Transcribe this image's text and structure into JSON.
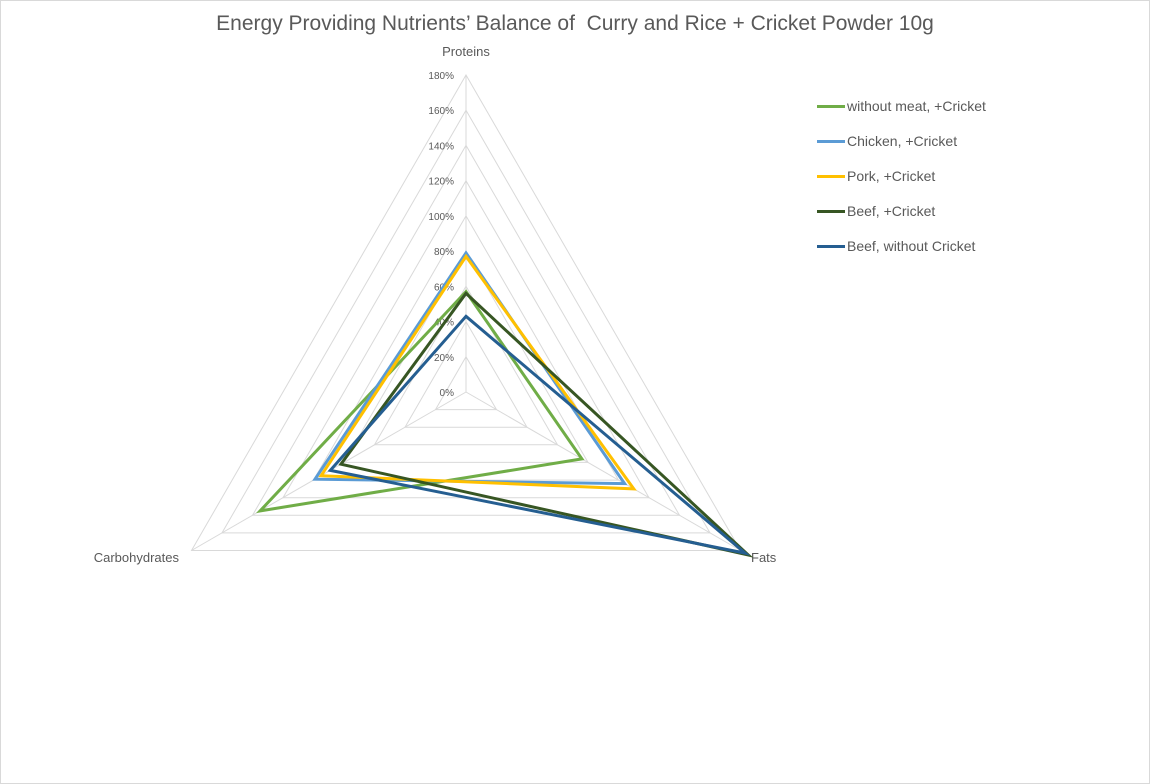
{
  "chart_data": {
    "type": "radar",
    "title": "Energy Providing Nutrients’ Balance of  Curry and Rice + Cricket Powder 10g",
    "axes": [
      "Proteins",
      "Fats",
      "Carbohydrates"
    ],
    "ticks": [
      "0%",
      "20%",
      "40%",
      "60%",
      "80%",
      "100%",
      "120%",
      "140%",
      "160%",
      "180%"
    ],
    "rmin": 0,
    "rmax": 180,
    "unit": "%",
    "grid": true,
    "legend_position": "right",
    "series": [
      {
        "name": "without meat, +Cricket",
        "color": "#70ad47",
        "values": [
          57,
          76,
          135
        ]
      },
      {
        "name": "Chicken, +Cricket",
        "color": "#5b9bd5",
        "values": [
          79,
          104,
          99
        ]
      },
      {
        "name": "Pork, +Cricket",
        "color": "#ffc000",
        "values": [
          77,
          110,
          95
        ]
      },
      {
        "name": "Beef, +Cricket",
        "color": "#375623",
        "values": [
          56,
          185,
          82
        ]
      },
      {
        "name": "Beef, without Cricket",
        "color": "#255e91",
        "values": [
          43,
          183,
          89
        ]
      }
    ]
  }
}
